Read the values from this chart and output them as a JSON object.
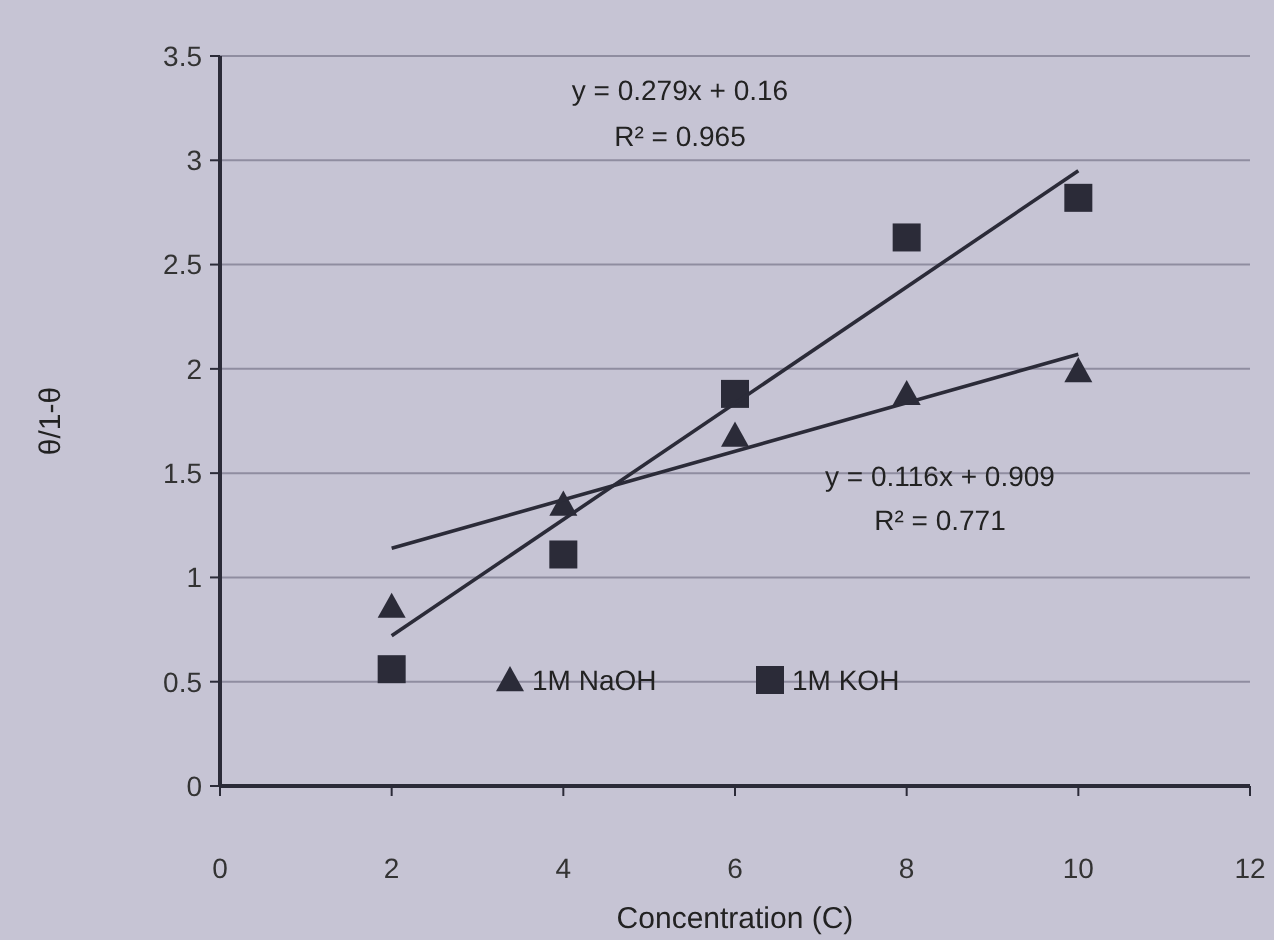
{
  "chart_data": {
    "type": "scatter",
    "xlabel": "Concentration (C)",
    "ylabel": "θ/1-θ",
    "xlim": [
      0,
      12
    ],
    "xticks": [
      0,
      2,
      4,
      6,
      8,
      10,
      12
    ],
    "ylim": [
      0,
      3.5
    ],
    "yticks": [
      0,
      0.5,
      1,
      1.5,
      2,
      2.5,
      3,
      3.5
    ],
    "grid": "y",
    "legend": "bottom",
    "series": [
      {
        "name": "1M NaOH",
        "marker": "triangle",
        "color": "#2b2b38",
        "x": [
          2,
          4,
          6,
          8,
          10
        ],
        "values": [
          0.86,
          1.35,
          1.68,
          1.88,
          1.99
        ]
      },
      {
        "name": "1M KOH",
        "marker": "square",
        "color": "#2b2b38",
        "x": [
          2,
          4,
          6,
          8,
          10
        ],
        "values": [
          0.56,
          1.11,
          1.88,
          2.63,
          2.82
        ]
      },
      {
        "type": "line",
        "marker": "none",
        "color": "#2b2b38",
        "x": [
          2,
          10
        ],
        "values": [
          1.14,
          2.07
        ]
      },
      {
        "type": "line",
        "marker": "none",
        "color": "#2b2b38",
        "x": [
          2,
          10
        ],
        "values": [
          0.72,
          2.95
        ]
      }
    ],
    "annotations": [
      "y = 0.279x + 0.16",
      "R² = 0.965",
      "y = 0.116x + 0.909",
      "R² = 0.771"
    ]
  }
}
